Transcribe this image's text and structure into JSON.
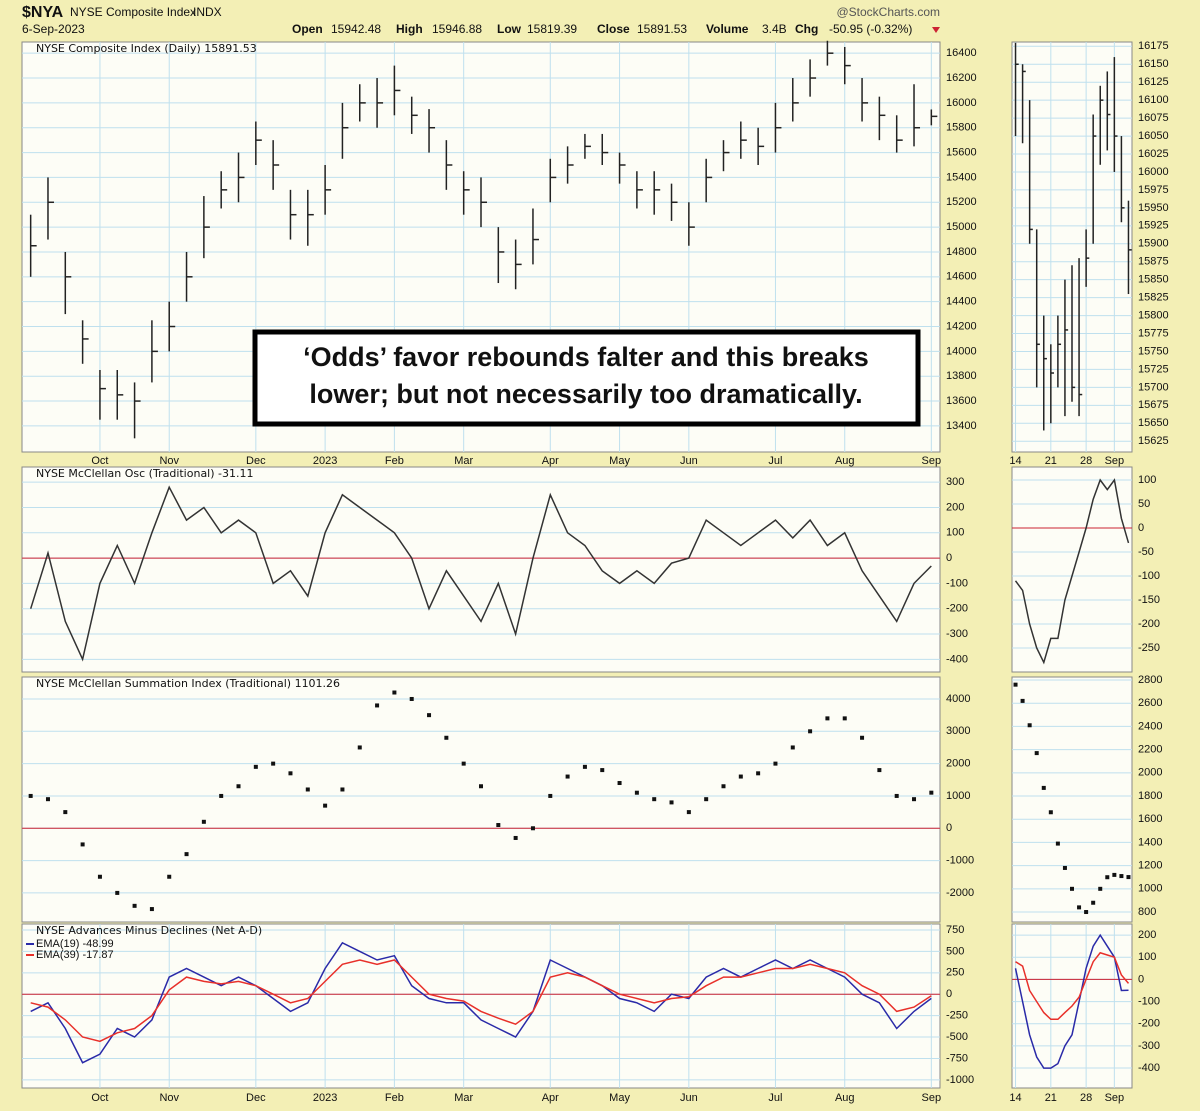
{
  "header": {
    "symbol": "$NYA",
    "name": "NYSE Composite Index",
    "exchange": "INDX",
    "date": "6-Sep-2023",
    "source": "@StockCharts.com",
    "open_label": "Open",
    "open": "15942.48",
    "high_label": "High",
    "high": "15946.88",
    "low_label": "Low",
    "low": "15819.39",
    "close_label": "Close",
    "close": "15891.53",
    "volume_label": "Volume",
    "volume": "3.4B",
    "chg_label": "Chg",
    "chg": "-50.95 (-0.32%)"
  },
  "chart_data": [
    {
      "type": "ohlc",
      "title": "NYSE Composite Index (Daily) 15891.53",
      "color": "#222222",
      "grid": true,
      "annotation": [
        "‘Odds’ favor rebounds falter and this breaks",
        "lower; but not necessarily too dramatically."
      ],
      "categories": [
        null,
        null,
        null,
        null,
        "Oct",
        null,
        null,
        null,
        "Nov",
        null,
        null,
        null,
        null,
        "Dec",
        null,
        null,
        null,
        "2023",
        null,
        null,
        null,
        "Feb",
        null,
        null,
        null,
        "Mar",
        null,
        null,
        null,
        null,
        "Apr",
        null,
        null,
        null,
        "May",
        null,
        null,
        null,
        "Jun",
        null,
        null,
        null,
        null,
        "Jul",
        null,
        null,
        null,
        "Aug",
        null,
        null,
        null,
        null,
        "Sep"
      ],
      "high": [
        15100,
        15400,
        14800,
        14250,
        13850,
        13850,
        13750,
        14250,
        14400,
        14800,
        15250,
        15450,
        15600,
        15850,
        15700,
        15300,
        15300,
        15500,
        16000,
        16150,
        16200,
        16300,
        16050,
        15950,
        15700,
        15450,
        15400,
        15000,
        14900,
        15150,
        15550,
        15650,
        15750,
        15750,
        15600,
        15450,
        15450,
        15350,
        15200,
        15550,
        15700,
        15850,
        15800,
        16000,
        16200,
        16350,
        16500,
        16450,
        16200,
        16050,
        15900,
        16150,
        15946.88
      ],
      "low": [
        14600,
        14900,
        14300,
        13900,
        13450,
        13450,
        13300,
        13750,
        14000,
        14400,
        14750,
        15150,
        15200,
        15500,
        15300,
        14900,
        14850,
        15100,
        15550,
        15850,
        15800,
        15900,
        15750,
        15600,
        15300,
        15100,
        15000,
        14550,
        14500,
        14700,
        15200,
        15350,
        15550,
        15500,
        15350,
        15150,
        15100,
        15050,
        14850,
        15200,
        15450,
        15550,
        15500,
        15600,
        15850,
        16050,
        16300,
        16150,
        15850,
        15700,
        15600,
        15650,
        15819.39
      ],
      "close": [
        14850,
        15200,
        14600,
        14100,
        13700,
        13650,
        13600,
        14000,
        14200,
        14600,
        15000,
        15300,
        15400,
        15700,
        15500,
        15100,
        15100,
        15300,
        15800,
        16000,
        16000,
        16100,
        15900,
        15800,
        15500,
        15300,
        15200,
        14800,
        14700,
        14900,
        15400,
        15500,
        15650,
        15600,
        15500,
        15300,
        15300,
        15200,
        15000,
        15400,
        15600,
        15700,
        15650,
        15800,
        16000,
        16200,
        16400,
        16300,
        16000,
        15900,
        15700,
        15800,
        15891.53
      ],
      "ylim": [
        13190,
        16490
      ],
      "yticks": [
        13400,
        13600,
        13800,
        14000,
        14200,
        14400,
        14600,
        14800,
        15000,
        15200,
        15400,
        15600,
        15800,
        16000,
        16200,
        16400
      ]
    },
    {
      "type": "line",
      "title": "NYSE McClellan Osc (Traditional) -31.11",
      "grid": true,
      "hline": 0,
      "hline_color": "#cc2233",
      "series": [
        {
          "color": "#333333",
          "values": [
            -200,
            20,
            -250,
            -400,
            -100,
            50,
            -100,
            100,
            280,
            150,
            200,
            100,
            150,
            100,
            -100,
            -50,
            -150,
            100,
            250,
            200,
            150,
            100,
            0,
            -200,
            -50,
            -150,
            -250,
            -100,
            -300,
            0,
            250,
            100,
            50,
            -50,
            -100,
            -50,
            -100,
            -20,
            0,
            150,
            100,
            50,
            100,
            150,
            80,
            150,
            50,
            100,
            -50,
            -150,
            -250,
            -100,
            -31.11
          ]
        }
      ],
      "ylim": [
        -450,
        360
      ],
      "yticks": [
        -400,
        -300,
        -200,
        -100,
        0,
        100,
        200,
        300
      ]
    },
    {
      "type": "dot",
      "title": "NYSE McClellan Summation Index (Traditional) 1101.26",
      "grid": true,
      "hline": 0,
      "hline_color": "#cc2233",
      "series": [
        {
          "color": "#111111",
          "values": [
            1000,
            900,
            500,
            -500,
            -1500,
            -2000,
            -2400,
            -2500,
            -1500,
            -800,
            200,
            1000,
            1300,
            1900,
            2000,
            1700,
            1200,
            700,
            1200,
            2500,
            3800,
            4200,
            4000,
            3500,
            2800,
            2000,
            1300,
            100,
            -300,
            0,
            1000,
            1600,
            1900,
            1800,
            1400,
            1100,
            900,
            800,
            500,
            900,
            1300,
            1600,
            1700,
            2000,
            2500,
            3000,
            3400,
            3400,
            2800,
            1800,
            1000,
            900,
            1101.26
          ]
        }
      ],
      "ylim": [
        -2900,
        4680
      ],
      "yticks": [
        -2000,
        -1000,
        0,
        1000,
        2000,
        3000,
        4000
      ]
    },
    {
      "type": "line",
      "title": "NYSE Advances Minus Declines (Net A-D)",
      "grid": true,
      "legend": true,
      "hline": 0,
      "hline_color": "#cc2233",
      "categories": [
        null,
        null,
        null,
        null,
        "Oct",
        null,
        null,
        null,
        "Nov",
        null,
        null,
        null,
        null,
        "Dec",
        null,
        null,
        null,
        "2023",
        null,
        null,
        null,
        "Feb",
        null,
        null,
        null,
        "Mar",
        null,
        null,
        null,
        null,
        "Apr",
        null,
        null,
        null,
        "May",
        null,
        null,
        null,
        "Jun",
        null,
        null,
        null,
        null,
        "Jul",
        null,
        null,
        null,
        "Aug",
        null,
        null,
        null,
        null,
        "Sep"
      ],
      "series": [
        {
          "name": "EMA(19) -48.99",
          "color": "#2a2aa8",
          "values": [
            -200,
            -100,
            -400,
            -800,
            -700,
            -400,
            -500,
            -300,
            200,
            300,
            200,
            100,
            200,
            100,
            -50,
            -200,
            -100,
            300,
            600,
            500,
            400,
            450,
            100,
            -50,
            -100,
            -100,
            -300,
            -400,
            -500,
            -200,
            400,
            300,
            200,
            100,
            -50,
            -100,
            -200,
            0,
            -50,
            200,
            300,
            200,
            300,
            400,
            300,
            400,
            300,
            200,
            0,
            -100,
            -400,
            -200,
            -48.99
          ]
        },
        {
          "name": "EMA(39) -17.87",
          "color": "#e8302a",
          "values": [
            -100,
            -150,
            -300,
            -500,
            -550,
            -450,
            -400,
            -250,
            50,
            200,
            150,
            120,
            150,
            100,
            0,
            -100,
            -50,
            150,
            350,
            400,
            350,
            400,
            200,
            0,
            -50,
            -80,
            -200,
            -280,
            -350,
            -200,
            200,
            250,
            200,
            100,
            0,
            -50,
            -100,
            -50,
            -30,
            100,
            200,
            200,
            250,
            300,
            300,
            350,
            300,
            250,
            100,
            0,
            -200,
            -150,
            -17.87
          ]
        }
      ],
      "ylim": [
        -1095,
        820
      ],
      "yticks": [
        -1000,
        -750,
        -500,
        -250,
        0,
        250,
        500,
        750
      ]
    },
    {
      "type": "ohlc",
      "color": "#222222",
      "grid": true,
      "categories": [
        "14",
        null,
        null,
        null,
        null,
        "21",
        null,
        null,
        null,
        null,
        "28",
        null,
        null,
        null,
        "Sep",
        null,
        null
      ],
      "high": [
        16180,
        16150,
        16100,
        15920,
        15800,
        15760,
        15800,
        15850,
        15870,
        15880,
        15920,
        16080,
        16120,
        16140,
        16160,
        16050,
        15960
      ],
      "low": [
        16050,
        16040,
        15900,
        15700,
        15640,
        15650,
        15700,
        15660,
        15680,
        15660,
        15840,
        15900,
        16010,
        16030,
        16000,
        15930,
        15830
      ],
      "close": [
        16150,
        16140,
        15920,
        15760,
        15740,
        15720,
        15760,
        15780,
        15700,
        15690,
        15880,
        16050,
        16100,
        16080,
        16050,
        15950,
        15891.53
      ],
      "ylim": [
        15610,
        16181
      ],
      "yticks": [
        15625,
        15650,
        15675,
        15700,
        15725,
        15750,
        15775,
        15800,
        15825,
        15850,
        15875,
        15900,
        15925,
        15950,
        15975,
        16000,
        16025,
        16050,
        16075,
        16100,
        16125,
        16150,
        16175
      ]
    },
    {
      "type": "line",
      "grid": true,
      "hline": 0,
      "hline_color": "#cc2233",
      "series": [
        {
          "color": "#333333",
          "values": [
            -110,
            -130,
            -200,
            -250,
            -280,
            -230,
            -230,
            -150,
            -100,
            -50,
            0,
            60,
            100,
            80,
            100,
            20,
            -31.11
          ]
        }
      ],
      "ylim": [
        -300,
        127
      ],
      "yticks": [
        -250,
        -200,
        -150,
        -100,
        -50,
        0,
        50,
        100
      ]
    },
    {
      "type": "dot",
      "grid": true,
      "series": [
        {
          "color": "#111111",
          "values": [
            2760,
            2620,
            2410,
            2170,
            1870,
            1660,
            1390,
            1180,
            1000,
            840,
            800,
            880,
            1000,
            1100,
            1120,
            1110,
            1101.26
          ]
        }
      ],
      "ylim": [
        714,
        2826
      ],
      "yticks": [
        800,
        1000,
        1200,
        1400,
        1600,
        1800,
        2000,
        2200,
        2400,
        2600,
        2800
      ]
    },
    {
      "type": "line",
      "grid": true,
      "hline": 0,
      "hline_color": "#cc2233",
      "categories": [
        "14",
        null,
        null,
        null,
        null,
        "21",
        null,
        null,
        null,
        null,
        "28",
        null,
        null,
        null,
        "Sep",
        null,
        null
      ],
      "series": [
        {
          "color": "#2a2aa8",
          "values": [
            50,
            -100,
            -250,
            -350,
            -400,
            -400,
            -380,
            -300,
            -250,
            -100,
            50,
            150,
            200,
            150,
            100,
            -50,
            -48.99
          ]
        },
        {
          "color": "#e8302a",
          "values": [
            80,
            60,
            -50,
            -100,
            -150,
            -180,
            -180,
            -150,
            -120,
            -80,
            0,
            80,
            120,
            110,
            100,
            20,
            -17.87
          ]
        }
      ],
      "ylim": [
        -490,
        250
      ],
      "yticks": [
        -400,
        -300,
        -200,
        -100,
        0,
        100,
        200
      ]
    }
  ]
}
